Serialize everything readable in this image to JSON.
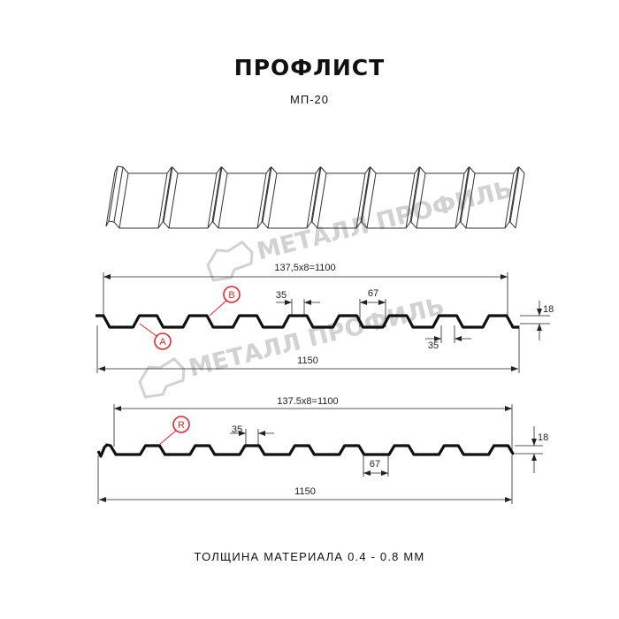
{
  "header": {
    "title": "ПРОФЛИСТ",
    "subtitle": "МП-20"
  },
  "watermark": {
    "text": "МЕТАЛЛ ПРОФИЛЬ",
    "color": "#d2d2d2"
  },
  "profile_a": {
    "pitch_label": "137,5x8=1100",
    "width_label": "1150",
    "top_rib_label": "35",
    "valley_label": "67",
    "bottom_rib_label": "35",
    "height_label": "18",
    "callouts": [
      "B",
      "A"
    ]
  },
  "profile_r": {
    "pitch_label": "137.5x8=1100",
    "width_label": "1150",
    "top_rib_label": "35",
    "valley_label": "67",
    "height_label": "18",
    "callouts": [
      "R"
    ]
  },
  "footer": {
    "thickness": "ТОЛЩИНА МАТЕРИАЛА 0.4 - 0.8 ММ"
  },
  "colors": {
    "callout": "#e3262b",
    "line": "#111111"
  }
}
